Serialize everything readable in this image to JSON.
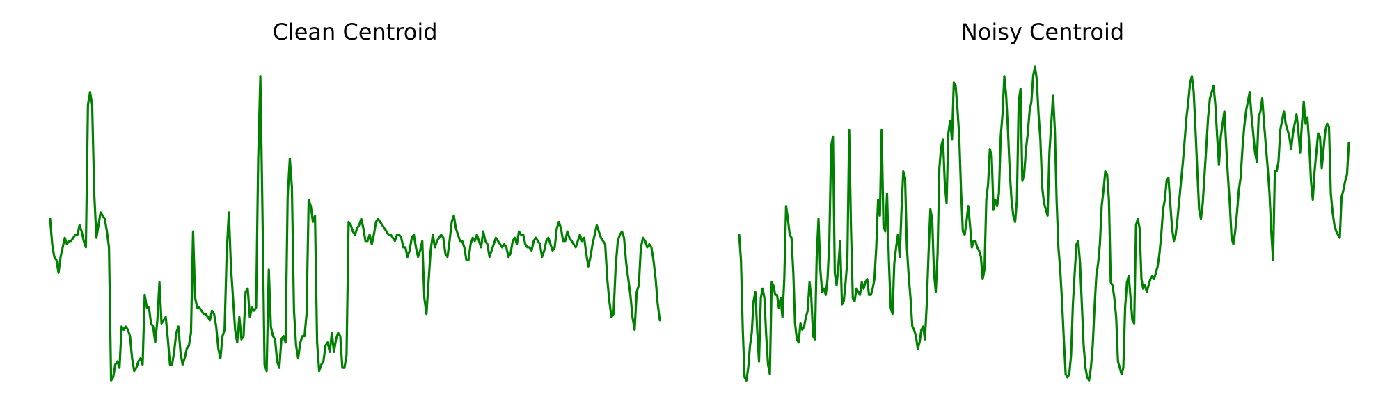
{
  "chart_data": [
    {
      "type": "line",
      "title": "Clean Centroid",
      "axes": "off",
      "grid": false,
      "ylim": [
        0,
        1
      ],
      "color": "#008000",
      "series": [
        {
          "values": [
            0.52,
            0.44,
            0.4,
            0.39,
            0.35,
            0.4,
            0.43,
            0.46,
            0.44,
            0.45,
            0.45,
            0.46,
            0.47,
            0.47,
            0.5,
            0.48,
            0.45,
            0.43,
            0.88,
            0.92,
            0.88,
            0.6,
            0.46,
            0.5,
            0.54,
            0.53,
            0.52,
            0.48,
            0.43,
            0.01,
            0.02,
            0.06,
            0.07,
            0.05,
            0.18,
            0.17,
            0.18,
            0.17,
            0.15,
            0.08,
            0.04,
            0.05,
            0.07,
            0.08,
            0.06,
            0.28,
            0.24,
            0.24,
            0.19,
            0.18,
            0.13,
            0.2,
            0.32,
            0.19,
            0.2,
            0.21,
            0.14,
            0.06,
            0.06,
            0.1,
            0.16,
            0.18,
            0.1,
            0.06,
            0.08,
            0.11,
            0.12,
            0.16,
            0.48,
            0.27,
            0.24,
            0.24,
            0.23,
            0.22,
            0.22,
            0.21,
            0.2,
            0.23,
            0.22,
            0.18,
            0.11,
            0.08,
            0.15,
            0.17,
            0.41,
            0.54,
            0.37,
            0.27,
            0.17,
            0.13,
            0.21,
            0.14,
            0.15,
            0.29,
            0.3,
            0.21,
            0.24,
            0.23,
            0.24,
            0.71,
            0.97,
            0.54,
            0.06,
            0.04,
            0.36,
            0.18,
            0.15,
            0.14,
            0.07,
            0.05,
            0.14,
            0.15,
            0.13,
            0.59,
            0.71,
            0.62,
            0.23,
            0.12,
            0.08,
            0.13,
            0.15,
            0.15,
            0.22,
            0.58,
            0.56,
            0.51,
            0.53,
            0.13,
            0.04,
            0.06,
            0.07,
            0.12,
            0.13,
            0.1,
            0.16,
            0.1,
            0.14,
            0.16,
            0.15,
            0.05,
            0.05,
            0.09,
            0.51,
            0.5,
            0.48,
            0.47,
            0.49,
            0.5,
            0.52,
            0.49,
            0.45,
            0.45,
            0.47,
            0.44,
            0.47,
            0.51,
            0.52,
            0.51,
            0.5,
            0.49,
            0.48,
            0.47,
            0.47,
            0.46,
            0.45,
            0.47,
            0.47,
            0.46,
            0.43,
            0.43,
            0.4,
            0.42,
            0.46,
            0.47,
            0.43,
            0.4,
            0.42,
            0.45,
            0.27,
            0.22,
            0.32,
            0.42,
            0.47,
            0.43,
            0.45,
            0.46,
            0.47,
            0.46,
            0.41,
            0.4,
            0.45,
            0.51,
            0.53,
            0.49,
            0.47,
            0.45,
            0.45,
            0.43,
            0.39,
            0.39,
            0.44,
            0.46,
            0.45,
            0.47,
            0.45,
            0.43,
            0.48,
            0.45,
            0.44,
            0.4,
            0.42,
            0.44,
            0.46,
            0.45,
            0.44,
            0.43,
            0.44,
            0.43,
            0.4,
            0.41,
            0.45,
            0.46,
            0.44,
            0.48,
            0.47,
            0.47,
            0.44,
            0.43,
            0.43,
            0.42,
            0.45,
            0.46,
            0.45,
            0.44,
            0.4,
            0.42,
            0.45,
            0.46,
            0.44,
            0.42,
            0.43,
            0.49,
            0.51,
            0.49,
            0.45,
            0.45,
            0.48,
            0.46,
            0.45,
            0.44,
            0.43,
            0.45,
            0.47,
            0.45,
            0.46,
            0.41,
            0.37,
            0.4,
            0.44,
            0.47,
            0.5,
            0.48,
            0.46,
            0.45,
            0.44,
            0.33,
            0.26,
            0.21,
            0.22,
            0.37,
            0.45,
            0.47,
            0.48,
            0.46,
            0.38,
            0.33,
            0.28,
            0.21,
            0.17,
            0.29,
            0.31,
            0.43,
            0.46,
            0.45,
            0.43,
            0.44,
            0.43,
            0.39,
            0.33,
            0.25,
            0.2
          ]
        }
      ]
    },
    {
      "type": "line",
      "title": "Noisy Centroid",
      "axes": "off",
      "grid": false,
      "ylim": [
        0,
        1
      ],
      "color": "#008000",
      "series": [
        {
          "values": [
            0.47,
            0.39,
            0.17,
            0.02,
            0.01,
            0.05,
            0.12,
            0.16,
            0.26,
            0.29,
            0.17,
            0.07,
            0.27,
            0.3,
            0.27,
            0.15,
            0.06,
            0.03,
            0.32,
            0.31,
            0.28,
            0.28,
            0.24,
            0.27,
            0.21,
            0.33,
            0.56,
            0.52,
            0.47,
            0.46,
            0.35,
            0.19,
            0.14,
            0.13,
            0.19,
            0.17,
            0.18,
            0.21,
            0.23,
            0.32,
            0.27,
            0.15,
            0.14,
            0.4,
            0.52,
            0.36,
            0.29,
            0.3,
            0.28,
            0.33,
            0.45,
            0.75,
            0.78,
            0.35,
            0.31,
            0.37,
            0.45,
            0.25,
            0.26,
            0.32,
            0.39,
            0.8,
            0.49,
            0.27,
            0.26,
            0.3,
            0.29,
            0.28,
            0.32,
            0.3,
            0.32,
            0.33,
            0.28,
            0.28,
            0.3,
            0.33,
            0.43,
            0.58,
            0.53,
            0.8,
            0.5,
            0.48,
            0.6,
            0.39,
            0.24,
            0.22,
            0.38,
            0.43,
            0.47,
            0.4,
            0.55,
            0.67,
            0.65,
            0.43,
            0.34,
            0.27,
            0.18,
            0.17,
            0.15,
            0.11,
            0.13,
            0.17,
            0.18,
            0.14,
            0.25,
            0.41,
            0.55,
            0.52,
            0.35,
            0.29,
            0.41,
            0.68,
            0.75,
            0.77,
            0.63,
            0.57,
            0.79,
            0.83,
            0.77,
            0.95,
            0.94,
            0.87,
            0.78,
            0.61,
            0.48,
            0.47,
            0.51,
            0.56,
            0.5,
            0.43,
            0.45,
            0.45,
            0.43,
            0.42,
            0.4,
            0.33,
            0.36,
            0.58,
            0.63,
            0.74,
            0.72,
            0.55,
            0.58,
            0.56,
            0.6,
            0.78,
            0.85,
            0.97,
            0.91,
            0.8,
            0.67,
            0.58,
            0.53,
            0.51,
            0.58,
            0.89,
            0.93,
            0.64,
            0.66,
            0.74,
            0.79,
            0.86,
            0.89,
            0.97,
            1.0,
            0.96,
            0.85,
            0.77,
            0.62,
            0.57,
            0.55,
            0.53,
            0.73,
            0.82,
            0.91,
            0.8,
            0.58,
            0.43,
            0.36,
            0.26,
            0.14,
            0.03,
            0.02,
            0.03,
            0.09,
            0.25,
            0.35,
            0.44,
            0.45,
            0.38,
            0.25,
            0.12,
            0.05,
            0.02,
            0.01,
            0.05,
            0.12,
            0.24,
            0.34,
            0.38,
            0.44,
            0.56,
            0.61,
            0.67,
            0.66,
            0.58,
            0.32,
            0.31,
            0.27,
            0.21,
            0.07,
            0.05,
            0.03,
            0.05,
            0.24,
            0.32,
            0.34,
            0.27,
            0.2,
            0.19,
            0.5,
            0.52,
            0.49,
            0.33,
            0.3,
            0.31,
            0.29,
            0.31,
            0.33,
            0.34,
            0.33,
            0.35,
            0.37,
            0.41,
            0.47,
            0.55,
            0.58,
            0.64,
            0.65,
            0.57,
            0.49,
            0.45,
            0.47,
            0.52,
            0.58,
            0.64,
            0.7,
            0.77,
            0.84,
            0.89,
            0.95,
            0.97,
            0.92,
            0.8,
            0.67,
            0.55,
            0.52,
            0.57,
            0.66,
            0.75,
            0.84,
            0.9,
            0.92,
            0.94,
            0.88,
            0.78,
            0.69,
            0.78,
            0.82,
            0.86,
            0.75,
            0.65,
            0.57,
            0.46,
            0.44,
            0.48,
            0.54,
            0.61,
            0.65,
            0.74,
            0.81,
            0.86,
            0.89,
            0.92,
            0.85,
            0.79,
            0.73,
            0.7,
            0.84,
            0.86,
            0.9,
            0.82,
            0.75,
            0.68,
            0.6,
            0.48,
            0.39,
            0.67,
            0.67,
            0.7,
            0.8,
            0.83,
            0.86,
            0.82,
            0.8,
            0.78,
            0.74,
            0.79,
            0.82,
            0.85,
            0.8,
            0.73,
            0.82,
            0.89,
            0.82,
            0.84,
            0.76,
            0.64,
            0.58,
            0.67,
            0.73,
            0.79,
            0.78,
            0.68,
            0.74,
            0.8,
            0.82,
            0.81,
            0.6,
            0.54,
            0.5,
            0.48,
            0.47,
            0.46,
            0.59,
            0.61,
            0.64,
            0.66,
            0.76
          ]
        }
      ]
    }
  ]
}
